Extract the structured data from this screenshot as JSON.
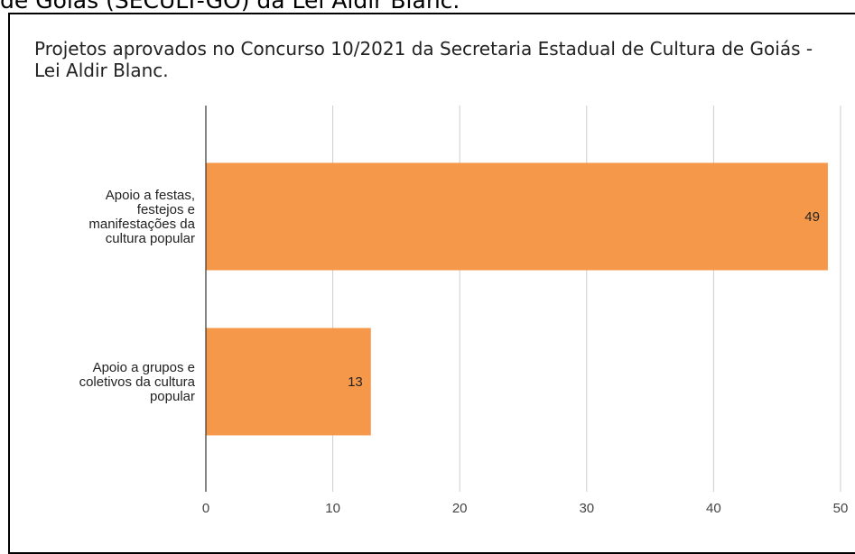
{
  "caption": "de Goiás (SECULT-GO) da Lei Aldir Blanc.",
  "chart_data": {
    "type": "bar",
    "orientation": "horizontal",
    "title": "Projetos aprovados no Concurso 10/2021 da Secretaria Estadual de Cultura de Goiás - Lei Aldir Blanc.",
    "categories": [
      [
        "Apoio a festas,",
        "festejos e",
        "manifestações da",
        "cultura popular"
      ],
      [
        "Apoio a grupos e",
        "coletivos da cultura",
        "popular"
      ]
    ],
    "values": [
      49,
      13
    ],
    "xlim": [
      0,
      50
    ],
    "xticks": [
      0,
      10,
      20,
      30,
      40,
      50
    ],
    "grid": true,
    "bar_color": "#f5984a",
    "grid_color": "#cccccc"
  }
}
